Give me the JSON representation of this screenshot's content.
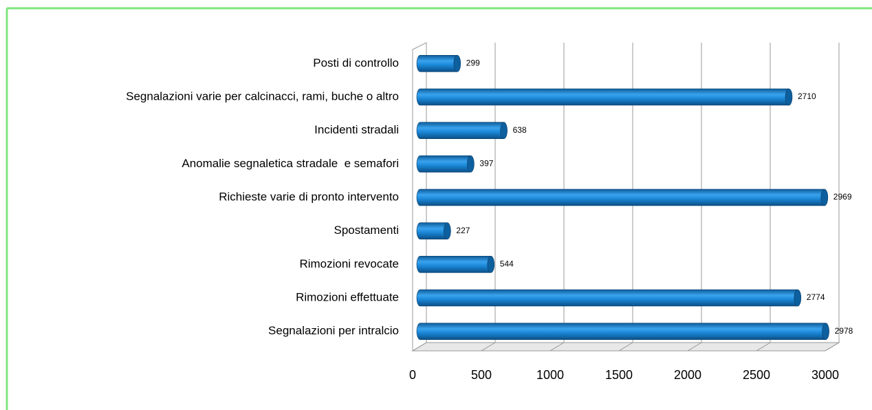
{
  "chart_data": {
    "type": "bar",
    "orientation": "horizontal",
    "categories": [
      "Posti di controllo",
      "Segnalazioni varie per calcinacci, rami, buche o altro",
      "Incidenti stradali",
      "Anomalie segnaletica stradale  e semafori",
      "Richieste varie di pronto intervento",
      "Spostamenti",
      "Rimozioni revocate",
      "Rimozioni effettuate",
      "Segnalazioni per intralcio"
    ],
    "values": [
      299,
      2710,
      638,
      397,
      2969,
      227,
      544,
      2774,
      2978
    ],
    "color": "#1a86d6",
    "xlim": [
      0,
      3000
    ],
    "xticks": [
      0,
      500,
      1000,
      1500,
      2000,
      2500,
      3000
    ],
    "grid": true
  }
}
